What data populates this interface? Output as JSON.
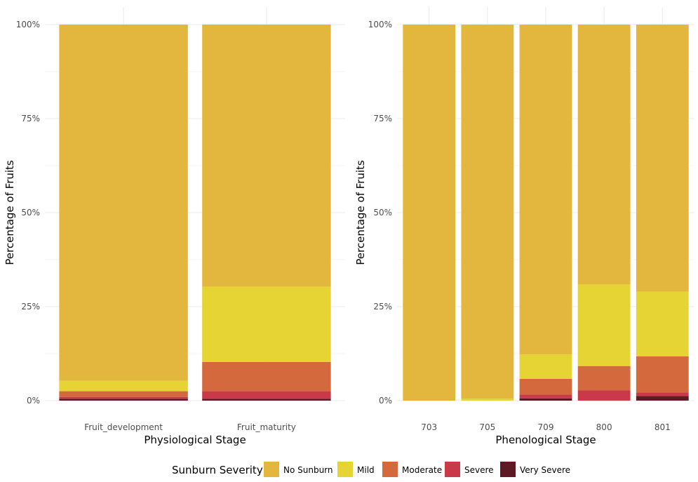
{
  "colors": {
    "No Sunburn": "#E3B63E",
    "Mild": "#E6D435",
    "Moderate": "#D4693E",
    "Severe": "#C9394A",
    "Very Severe": "#5E1A24",
    "grid": "#EBEBEB"
  },
  "legend": {
    "title": "Sunburn Severity",
    "items": [
      "No Sunburn",
      "Mild",
      "Moderate",
      "Severe",
      "Very Severe"
    ],
    "placement": "bottom"
  },
  "chart_data": [
    {
      "type": "bar",
      "stacked": true,
      "xlabel": "Physiological Stage",
      "ylabel": "Percentage of Fruits",
      "ylim": [
        0,
        100
      ],
      "yticks": [
        "0%",
        "25%",
        "50%",
        "75%",
        "100%"
      ],
      "categories": [
        "Fruit_development",
        "Fruit_maturity"
      ],
      "series": [
        {
          "name": "Very Severe",
          "values": [
            0.5,
            0.5
          ]
        },
        {
          "name": "Severe",
          "values": [
            0.5,
            2.0
          ]
        },
        {
          "name": "Moderate",
          "values": [
            1.5,
            7.8
          ]
        },
        {
          "name": "Mild",
          "values": [
            2.8,
            20.0
          ]
        },
        {
          "name": "No Sunburn",
          "values": [
            94.7,
            69.7
          ]
        }
      ]
    },
    {
      "type": "bar",
      "stacked": true,
      "xlabel": "Phenological Stage",
      "ylabel": "Percentage of Fruits",
      "ylim": [
        0,
        100
      ],
      "yticks": [
        "0%",
        "25%",
        "50%",
        "75%",
        "100%"
      ],
      "categories": [
        "703",
        "705",
        "709",
        "800",
        "801"
      ],
      "series": [
        {
          "name": "Very Severe",
          "values": [
            0,
            0,
            0.6,
            0,
            1.2
          ]
        },
        {
          "name": "Severe",
          "values": [
            0,
            0,
            1.0,
            2.7,
            1.0
          ]
        },
        {
          "name": "Moderate",
          "values": [
            0,
            0,
            4.2,
            6.5,
            9.6
          ]
        },
        {
          "name": "Mild",
          "values": [
            0,
            0.5,
            6.5,
            21.7,
            17.2
          ]
        },
        {
          "name": "No Sunburn",
          "values": [
            100,
            99.5,
            87.7,
            69.1,
            71.0
          ]
        }
      ]
    }
  ]
}
